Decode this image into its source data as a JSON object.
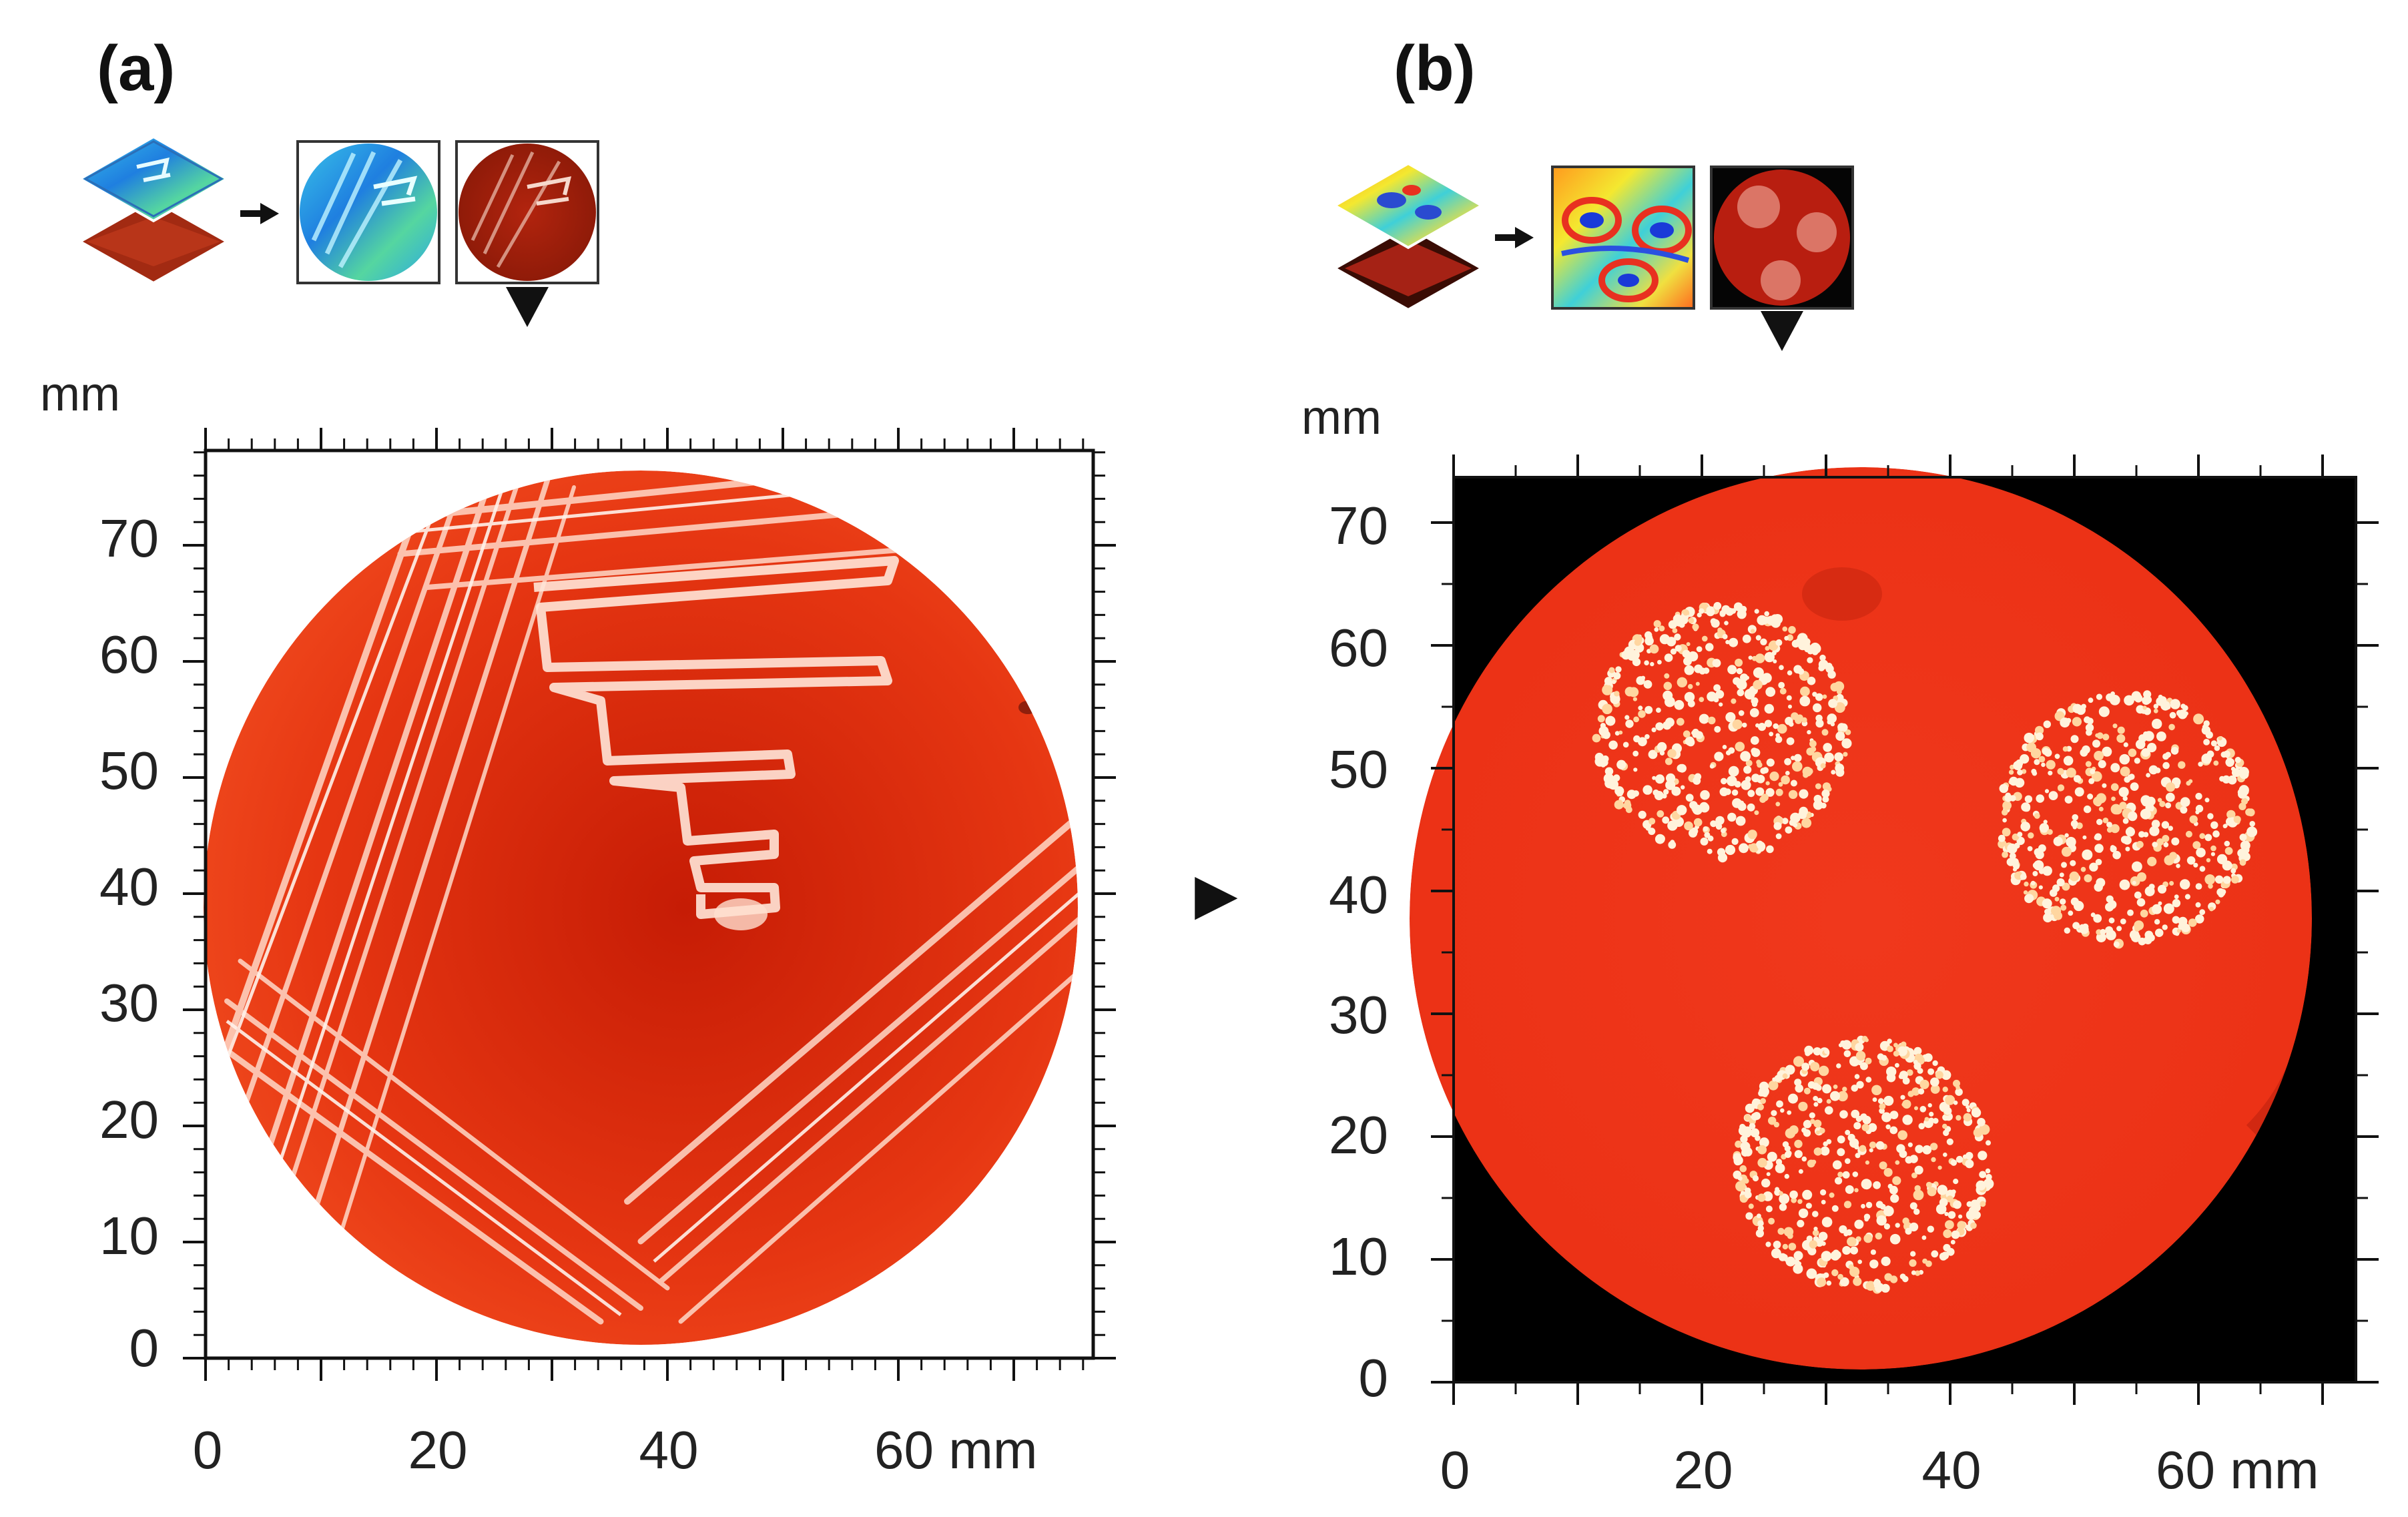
{
  "panels": [
    {
      "id": "a",
      "label": "(a)",
      "y_unit": "mm",
      "x_last_label": "60 mm",
      "x_ticks": [
        "0",
        "20",
        "40",
        "60 mm"
      ],
      "y_ticks": [
        "0",
        "10",
        "20",
        "30",
        "40",
        "50",
        "60",
        "70"
      ],
      "x_range": [
        0,
        77
      ],
      "y_range": [
        0,
        78
      ],
      "image": "streaked-agar-plate",
      "image_background": "#ffffff",
      "plate_color": "#e8330f"
    },
    {
      "id": "b",
      "label": "(b)",
      "y_unit": "mm",
      "x_last_label": "60 mm",
      "x_ticks": [
        "0",
        "20",
        "40",
        "60 mm"
      ],
      "y_ticks": [
        "0",
        "10",
        "20",
        "30",
        "40",
        "50",
        "60",
        "70"
      ],
      "x_range": [
        0,
        71
      ],
      "y_range": [
        0,
        74
      ],
      "image": "three-colony-spots-plate",
      "image_background": "#000000",
      "plate_color": "#f0351a"
    }
  ],
  "arrow_glyph": "▶"
}
